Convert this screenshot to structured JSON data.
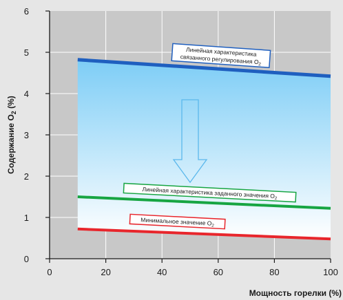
{
  "chart_data": {
    "type": "line",
    "xlabel": "Мощность горелки (%)",
    "ylabel_main": "Содержание O",
    "ylabel_sub": "2",
    "ylabel_tail": " (%)",
    "xlim": [
      0,
      100
    ],
    "ylim": [
      0,
      6
    ],
    "xticks": [
      0,
      20,
      40,
      60,
      80,
      100
    ],
    "yticks": [
      0,
      1,
      2,
      3,
      4,
      5,
      6
    ],
    "grid": true,
    "series": [
      {
        "name": "Линейная характеристика связанного регулирования O2",
        "x": [
          10,
          100
        ],
        "y": [
          4.82,
          4.42
        ],
        "color": "#1f5fbf"
      },
      {
        "name": "Линейная характеристика заданного значения O2",
        "x": [
          10,
          100
        ],
        "y": [
          1.5,
          1.22
        ],
        "color": "#17a542"
      },
      {
        "name": "Минимальное значение O2",
        "x": [
          10,
          100
        ],
        "y": [
          0.72,
          0.48
        ],
        "color": "#e8262c"
      }
    ],
    "annotations": {
      "blue_line1": "Линейная характеристика",
      "blue_line2": "связанного регулирования O",
      "blue_sub": "2",
      "green_text": "Линейная характеристика заданного значения O",
      "green_sub": "2",
      "red_text": "Минимальное значение O",
      "red_sub": "2"
    },
    "colors": {
      "background": "#e6e6e6",
      "plot": "#c8c8c8",
      "fill_top": "#7dcdf6",
      "fill_bottom": "#ffffff",
      "arrow": "#5bb8ec"
    }
  }
}
